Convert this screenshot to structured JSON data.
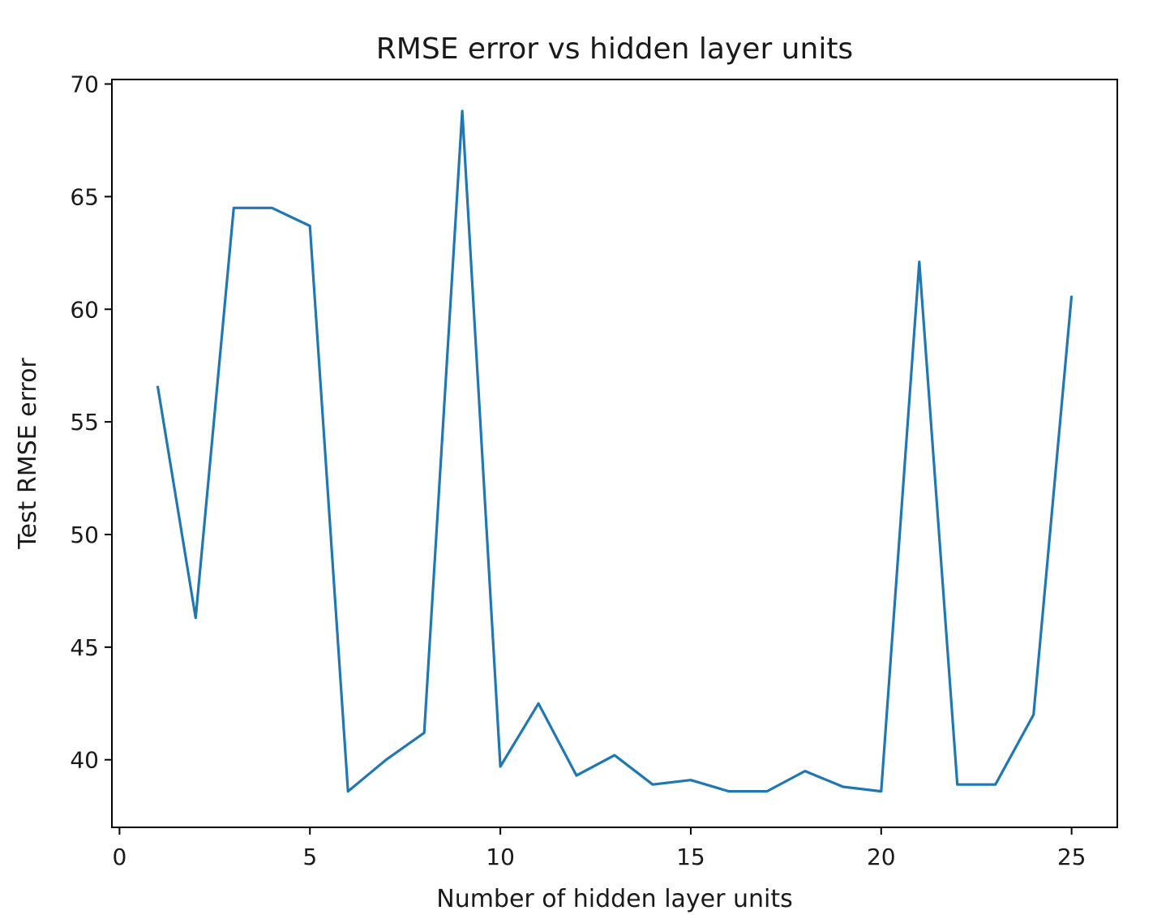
{
  "chart_data": {
    "type": "line",
    "title": "RMSE error vs hidden layer units",
    "xlabel": "Number of hidden layer units",
    "ylabel": "Test RMSE error",
    "xlim": [
      -0.2,
      26.2
    ],
    "ylim": [
      37.0,
      70.2
    ],
    "xticks": [
      0,
      5,
      10,
      15,
      20,
      25
    ],
    "yticks": [
      40,
      45,
      50,
      55,
      60,
      65,
      70
    ],
    "grid": false,
    "series": [
      {
        "color": "#1f77b4",
        "x": [
          1,
          2,
          3,
          4,
          5,
          6,
          7,
          8,
          9,
          10,
          11,
          12,
          13,
          14,
          15,
          16,
          17,
          18,
          19,
          20,
          21,
          22,
          23,
          24,
          25
        ],
        "y": [
          56.6,
          46.3,
          64.5,
          64.5,
          63.7,
          38.6,
          40.0,
          41.2,
          68.8,
          39.7,
          42.5,
          39.3,
          40.2,
          38.9,
          39.1,
          38.6,
          38.6,
          39.5,
          38.8,
          38.6,
          62.1,
          38.9,
          38.9,
          42.0,
          60.6
        ]
      }
    ]
  }
}
